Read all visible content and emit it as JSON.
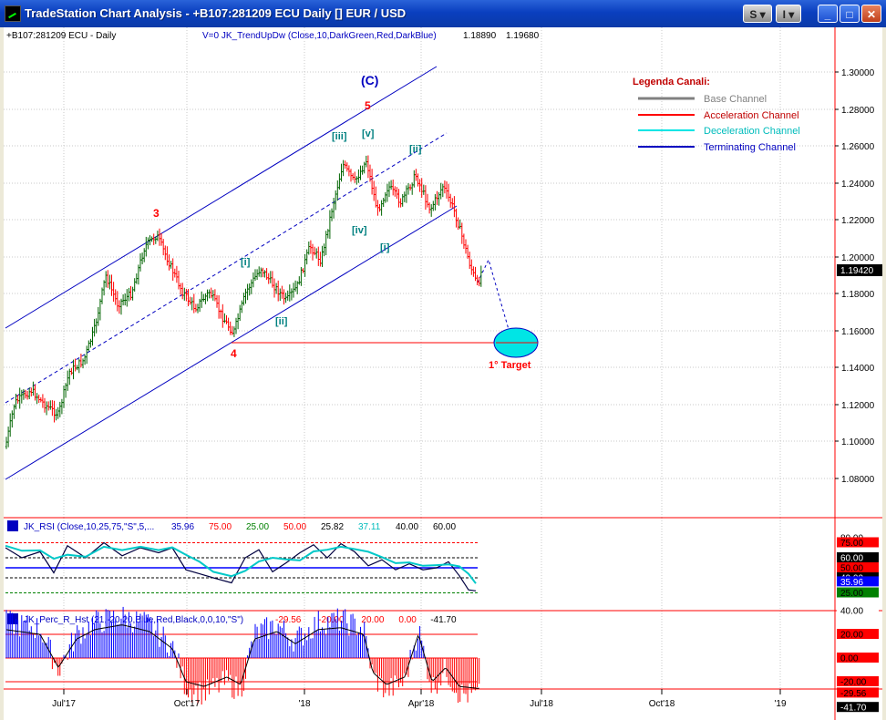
{
  "window": {
    "title": "TradeStation Chart Analysis - +B107:281209 ECU Daily [] EUR / USD",
    "btn_s": "S ▾",
    "btn_i": "I ▾",
    "btn_min": "_",
    "btn_max": "□",
    "btn_close": "✕"
  },
  "chart": {
    "symbol_label": "+B107:281209 ECU - Daily",
    "indicator_label": "V=0  JK_TrendUpDw (Close,10,DarkGreen,Red,DarkBlue)",
    "indicator_val1": "1.18890",
    "indicator_val2": "1.19680",
    "price_ticks": [
      "1.30000",
      "1.28000",
      "1.26000",
      "1.24000",
      "1.22000",
      "1.20000",
      "1.18000",
      "1.16000",
      "1.14000",
      "1.12000",
      "1.10000",
      "1.08000"
    ],
    "last_price": "1.19420",
    "date_ticks": [
      "Jul'17",
      "Oct'17",
      "'18",
      "Apr'18",
      "Jul'18",
      "Oct'18",
      "'19"
    ],
    "wave_labels": {
      "C": "(C)",
      "w5": "5",
      "w3": "3",
      "w4": "4",
      "iii": "[iii]",
      "v": "[v]",
      "ii_top": "[ii]",
      "iv": "[iv]",
      "i_bot": "[i]",
      "i_left": "[i]",
      "ii_left": "[ii]"
    },
    "target_label": "1° Target",
    "legend": {
      "title": "Legenda Canali:",
      "items": [
        {
          "label": "Base Channel",
          "color": "#808080"
        },
        {
          "label": "Acceleration Channel",
          "color": "#ff0000"
        },
        {
          "label": "Deceleration Channel",
          "color": "#00e5e5"
        },
        {
          "label": "Terminating Channel",
          "color": "#0000c0"
        }
      ]
    },
    "colors": {
      "up": "#006400",
      "down": "#ff0000",
      "channel": "#0000c0",
      "target": "#00e5e5"
    }
  },
  "rsi": {
    "header_name": "JK_RSI (Close,10,25,75,\"S\",5,...",
    "header_values": [
      {
        "v": "35.96",
        "c": "#0000c0"
      },
      {
        "v": "75.00",
        "c": "#ff0000"
      },
      {
        "v": "25.00",
        "c": "#008000"
      },
      {
        "v": "50.00",
        "c": "#ff0000"
      },
      {
        "v": "25.82",
        "c": "#000000"
      },
      {
        "v": "37.11",
        "c": "#00bcbc"
      },
      {
        "v": "40.00",
        "c": "#000000"
      },
      {
        "v": "60.00",
        "c": "#000000"
      }
    ],
    "axis_labels": [
      {
        "v": "80.00",
        "bg": "#ffffff",
        "fg": "#000000"
      },
      {
        "v": "75.00",
        "bg": "#ff0000",
        "fg": "#000000"
      },
      {
        "v": "60.00",
        "bg": "#000000",
        "fg": "#ffffff"
      },
      {
        "v": "50.00",
        "bg": "#ff0000",
        "fg": "#000000"
      },
      {
        "v": "40.00",
        "bg": "#000000",
        "fg": "#ffffff"
      },
      {
        "v": "35.96",
        "bg": "#0000ff",
        "fg": "#ffffff"
      },
      {
        "v": "25.00",
        "bg": "#008000",
        "fg": "#000000"
      }
    ]
  },
  "percr": {
    "header_name": "JK_Perc_R_Hst (21,-20,20,Blue,Red,Black,0,0,10,\"S\")",
    "header_values": [
      {
        "v": "-29.56",
        "c": "#ff0000"
      },
      {
        "v": "-20.00",
        "c": "#ff0000"
      },
      {
        "v": "20.00",
        "c": "#ff0000"
      },
      {
        "v": "0.00",
        "c": "#ff0000"
      },
      {
        "v": "-41.70",
        "c": "#000000"
      }
    ],
    "axis_labels": [
      {
        "v": "40.00",
        "bg": "#ffffff",
        "fg": "#000000"
      },
      {
        "v": "20.00",
        "bg": "#ff0000",
        "fg": "#000000"
      },
      {
        "v": "0.00",
        "bg": "#ff0000",
        "fg": "#000000"
      },
      {
        "v": "-20.00",
        "bg": "#ff0000",
        "fg": "#000000"
      },
      {
        "v": "-29.56",
        "bg": "#ff0000",
        "fg": "#000000"
      },
      {
        "v": "-41.70",
        "bg": "#000000",
        "fg": "#ffffff"
      }
    ]
  }
}
